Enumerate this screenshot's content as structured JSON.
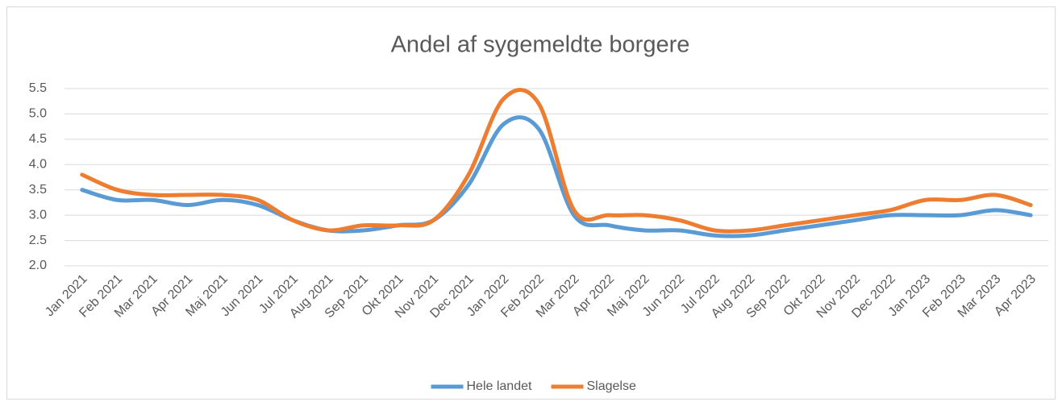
{
  "chart_data": {
    "type": "line",
    "title": "Andel af sygemeldte borgere",
    "categories": [
      "Jan 2021",
      "Feb 2021",
      "Mar 2021",
      "Apr 2021",
      "Maj 2021",
      "Jun 2021",
      "Jul 2021",
      "Aug 2021",
      "Sep 2021",
      "Okt 2021",
      "Nov 2021",
      "Dec 2021",
      "Jan 2022",
      "Feb 2022",
      "Mar 2022",
      "Apr 2022",
      "Maj 2022",
      "Jun 2022",
      "Jul 2022",
      "Aug 2022",
      "Sep 2022",
      "Okt 2022",
      "Nov 2022",
      "Dec 2022",
      "Jan 2023",
      "Feb 2023",
      "Mar 2023",
      "Apr 2023"
    ],
    "series": [
      {
        "name": "Hele landet",
        "color": "#5b9bd5",
        "values": [
          3.5,
          3.3,
          3.3,
          3.2,
          3.3,
          3.2,
          2.9,
          2.7,
          2.7,
          2.8,
          2.9,
          3.6,
          4.8,
          4.7,
          3.0,
          2.8,
          2.7,
          2.7,
          2.6,
          2.6,
          2.7,
          2.8,
          2.9,
          3.0,
          3.0,
          3.0,
          3.1,
          3.0
        ]
      },
      {
        "name": "Slagelse",
        "color": "#ed7d31",
        "values": [
          3.8,
          3.5,
          3.4,
          3.4,
          3.4,
          3.3,
          2.9,
          2.7,
          2.8,
          2.8,
          2.9,
          3.8,
          5.3,
          5.2,
          3.1,
          3.0,
          3.0,
          2.9,
          2.7,
          2.7,
          2.8,
          2.9,
          3.0,
          3.1,
          3.3,
          3.3,
          3.4,
          3.2
        ]
      }
    ],
    "ylim": [
      2.0,
      5.5
    ],
    "yticks": [
      {
        "value": 2,
        "label": "2.0"
      },
      {
        "value": 2.5,
        "label": "2.5"
      },
      {
        "value": 3,
        "label": "3.0"
      },
      {
        "value": 3.5,
        "label": "3.5"
      },
      {
        "value": 4,
        "label": "4.0"
      },
      {
        "value": 4.5,
        "label": "4.5"
      },
      {
        "value": 5,
        "label": "5.0"
      },
      {
        "value": 5.5,
        "label": "5.5"
      }
    ],
    "grid": true,
    "legend": "bottom"
  }
}
